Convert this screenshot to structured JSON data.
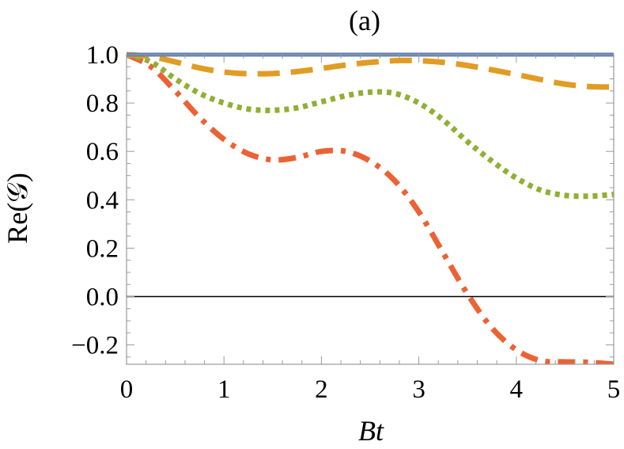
{
  "chart_data": {
    "type": "line",
    "title": "(a)",
    "xlabel": "Bt",
    "ylabel": "Re(𝒢)",
    "xlim": [
      0,
      5
    ],
    "ylim": [
      -0.28,
      1.0
    ],
    "xticks": [
      0,
      1,
      2,
      3,
      4,
      5
    ],
    "xtick_labels": [
      "0",
      "1",
      "2",
      "3",
      "4",
      "5"
    ],
    "yticks": [
      -0.2,
      0.0,
      0.2,
      0.4,
      0.6,
      0.8,
      1.0
    ],
    "ytick_labels": [
      "−0.2",
      "0.0",
      "0.2",
      "0.4",
      "0.6",
      "0.8",
      "1.0"
    ],
    "zero_line": true,
    "grid": false,
    "legend": "none",
    "x": [
      0,
      0.25,
      0.5,
      0.75,
      1.0,
      1.25,
      1.5,
      1.75,
      2.0,
      2.25,
      2.5,
      2.75,
      3.0,
      3.25,
      3.5,
      3.75,
      4.0,
      4.25,
      4.5,
      4.75,
      5.0
    ],
    "series": [
      {
        "style": "solid",
        "color": "#5e81b5",
        "values": [
          1.0,
          1.0,
          1.0,
          1.0,
          1.0,
          1.0,
          1.0,
          1.0,
          1.0,
          1.0,
          1.0,
          1.0,
          1.0,
          1.0,
          1.0,
          1.0,
          1.0,
          1.0,
          1.0,
          1.0,
          1.0
        ]
      },
      {
        "style": "dashed",
        "color": "#e19c24",
        "values": [
          1.0,
          0.992,
          0.97,
          0.945,
          0.928,
          0.921,
          0.922,
          0.93,
          0.943,
          0.957,
          0.968,
          0.975,
          0.975,
          0.968,
          0.955,
          0.937,
          0.918,
          0.897,
          0.878,
          0.868,
          0.866
        ]
      },
      {
        "style": "dotted",
        "color": "#8fb032",
        "values": [
          1.0,
          0.97,
          0.9,
          0.84,
          0.8,
          0.775,
          0.77,
          0.78,
          0.805,
          0.83,
          0.845,
          0.84,
          0.8,
          0.73,
          0.64,
          0.56,
          0.49,
          0.44,
          0.418,
          0.415,
          0.422
        ]
      },
      {
        "style": "dashdot",
        "color": "#eb6235",
        "values": [
          1.0,
          0.95,
          0.85,
          0.74,
          0.65,
          0.59,
          0.565,
          0.575,
          0.6,
          0.6,
          0.56,
          0.48,
          0.35,
          0.18,
          0.01,
          -0.13,
          -0.22,
          -0.265,
          -0.27,
          -0.272,
          -0.28
        ]
      }
    ]
  }
}
